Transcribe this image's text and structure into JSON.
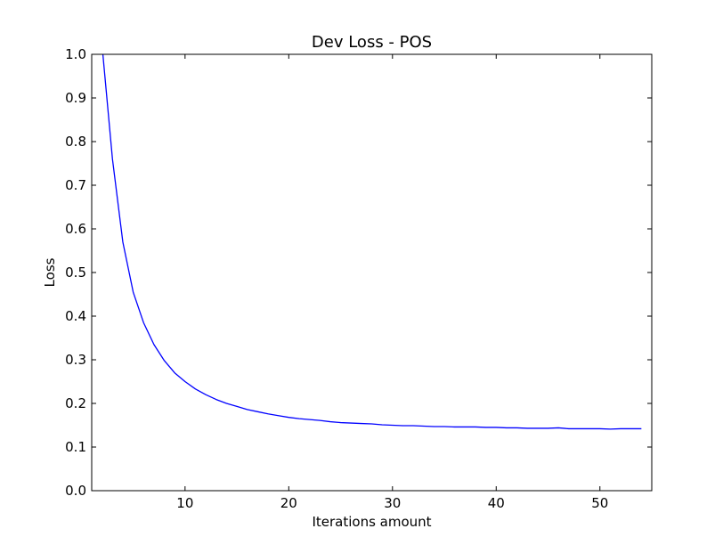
{
  "chart_data": {
    "type": "line",
    "title": "Dev Loss - POS",
    "xlabel": "Iterations amount",
    "ylabel": "Loss",
    "xlim": [
      1,
      55
    ],
    "ylim": [
      0.0,
      1.0
    ],
    "grid": false,
    "x_ticks": [
      10,
      20,
      30,
      40,
      50
    ],
    "x_tick_labels": [
      "10",
      "20",
      "30",
      "40",
      "50"
    ],
    "y_ticks": [
      0.0,
      0.1,
      0.2,
      0.3,
      0.4,
      0.5,
      0.6,
      0.7,
      0.8,
      0.9,
      1.0
    ],
    "y_tick_labels": [
      "0.0",
      "0.1",
      "0.2",
      "0.3",
      "0.4",
      "0.5",
      "0.6",
      "0.7",
      "0.8",
      "0.9",
      "1.0"
    ],
    "series": [
      {
        "name": "dev-loss",
        "color": "#0000ff",
        "x": [
          1,
          2,
          3,
          4,
          5,
          6,
          7,
          8,
          9,
          10,
          11,
          12,
          13,
          14,
          15,
          16,
          17,
          18,
          19,
          20,
          21,
          22,
          23,
          24,
          25,
          26,
          27,
          28,
          29,
          30,
          31,
          32,
          33,
          34,
          35,
          36,
          37,
          38,
          39,
          40,
          41,
          42,
          43,
          44,
          45,
          46,
          47,
          48,
          49,
          50,
          51,
          52,
          53,
          54
        ],
        "values": [
          1.5,
          1.02,
          0.76,
          0.57,
          0.455,
          0.385,
          0.335,
          0.298,
          0.27,
          0.25,
          0.233,
          0.22,
          0.209,
          0.2,
          0.193,
          0.186,
          0.181,
          0.176,
          0.172,
          0.168,
          0.165,
          0.163,
          0.161,
          0.158,
          0.156,
          0.155,
          0.154,
          0.153,
          0.151,
          0.15,
          0.149,
          0.149,
          0.148,
          0.147,
          0.147,
          0.146,
          0.146,
          0.146,
          0.145,
          0.145,
          0.144,
          0.144,
          0.143,
          0.143,
          0.143,
          0.144,
          0.142,
          0.142,
          0.142,
          0.142,
          0.141,
          0.142,
          0.142,
          0.142
        ]
      }
    ]
  }
}
